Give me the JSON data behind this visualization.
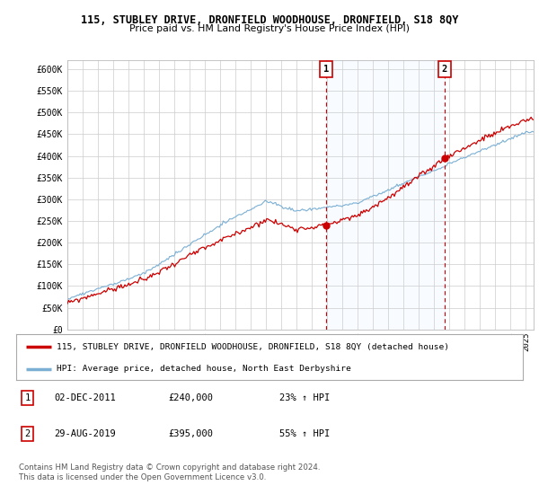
{
  "title1": "115, STUBLEY DRIVE, DRONFIELD WOODHOUSE, DRONFIELD, S18 8QY",
  "title2": "Price paid vs. HM Land Registry's House Price Index (HPI)",
  "ylim": [
    0,
    600000
  ],
  "xlim_start": 1995.0,
  "xlim_end": 2025.5,
  "sale1_x": 2011.92,
  "sale1_y": 240000,
  "sale1_label": "1",
  "sale2_x": 2019.67,
  "sale2_y": 395000,
  "sale2_label": "2",
  "red_line_color": "#cc0000",
  "blue_line_color": "#7bafd4",
  "shade_color": "#ddeeff",
  "annotation_color": "#cc0000",
  "grid_color": "#cccccc",
  "background_color": "#ffffff",
  "legend_entry1": "115, STUBLEY DRIVE, DRONFIELD WOODHOUSE, DRONFIELD, S18 8QY (detached house)",
  "legend_entry2": "HPI: Average price, detached house, North East Derbyshire",
  "note1_label": "1",
  "note1_date": "02-DEC-2011",
  "note1_price": "£240,000",
  "note1_hpi": "23% ↑ HPI",
  "note2_label": "2",
  "note2_date": "29-AUG-2019",
  "note2_price": "£395,000",
  "note2_hpi": "55% ↑ HPI",
  "footer": "Contains HM Land Registry data © Crown copyright and database right 2024.\nThis data is licensed under the Open Government Licence v3.0."
}
